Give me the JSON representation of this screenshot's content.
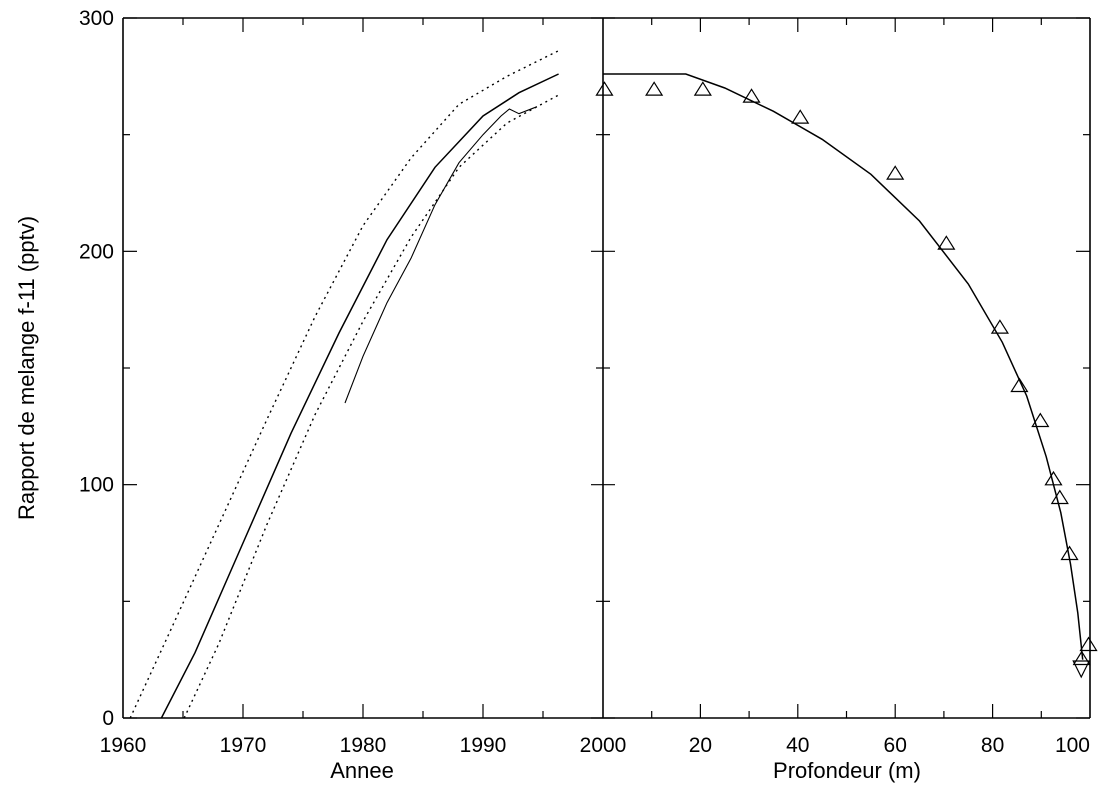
{
  "chart_data": [
    {
      "type": "line",
      "panel": "left",
      "xlabel": "Annee",
      "ylabel": "Rapport de melange f-11 (pptv)",
      "xlim": [
        1960,
        2000
      ],
      "ylim": [
        0,
        300
      ],
      "x_ticks": [
        "1960",
        "1970",
        "1980",
        "1990",
        "2000"
      ],
      "y_ticks": [
        "0",
        "100",
        "200",
        "300"
      ],
      "grid": false,
      "series": [
        {
          "style": "solid",
          "x": [
            1963.2,
            1966,
            1970,
            1974,
            1978,
            1982,
            1986,
            1990,
            1993,
            1996.3
          ],
          "y": [
            0,
            28,
            75,
            122,
            165,
            205,
            236,
            258,
            268,
            276
          ]
        },
        {
          "style": "dotted",
          "x": [
            1960.6,
            1964,
            1968,
            1972,
            1976,
            1980,
            1984,
            1988,
            1992,
            1996.3
          ],
          "y": [
            0,
            38,
            83,
            128,
            172,
            211,
            240,
            263,
            275,
            286
          ]
        },
        {
          "style": "dotted",
          "x": [
            1965.1,
            1968,
            1972,
            1976,
            1980,
            1984,
            1988,
            1992,
            1996.3
          ],
          "y": [
            0,
            32,
            83,
            130,
            170,
            206,
            236,
            255,
            267
          ]
        },
        {
          "style": "measured",
          "x": [
            1978.5,
            1980,
            1982,
            1984,
            1986,
            1988,
            1990,
            1991.5,
            1992.2,
            1993,
            1994.5
          ],
          "y": [
            135,
            155,
            178,
            197,
            220,
            238,
            250,
            258,
            261,
            259,
            262
          ]
        }
      ]
    },
    {
      "type": "line",
      "panel": "right",
      "xlabel": "Profondeur (m)",
      "xlim": [
        0,
        100
      ],
      "ylim": [
        0,
        300
      ],
      "x_ticks": [
        "0",
        "20",
        "40",
        "60",
        "80",
        "100"
      ],
      "grid": false,
      "series": [
        {
          "style": "solid",
          "x": [
            0,
            17,
            25,
            35,
            45,
            55,
            65,
            75,
            82,
            87,
            91,
            94,
            96,
            97.5,
            98.5
          ],
          "y": [
            276,
            276,
            270,
            260,
            248,
            233,
            213,
            186,
            161,
            138,
            112,
            88,
            66,
            45,
            25
          ]
        },
        {
          "style": "markers",
          "marker": "triangle",
          "x": [
            0.3,
            10.5,
            20.5,
            30.5,
            40.5,
            60,
            70.5,
            81.5,
            85.5,
            89.8,
            92.5,
            93.8,
            95.8,
            98.3,
            99.7
          ],
          "y": [
            269,
            269,
            269,
            266,
            257,
            233,
            203,
            167,
            142,
            127,
            102,
            94,
            70,
            25,
            31
          ]
        },
        {
          "style": "markers",
          "marker": "inverted-triangle",
          "x": [
            98.2
          ],
          "y": [
            21
          ]
        }
      ]
    }
  ]
}
